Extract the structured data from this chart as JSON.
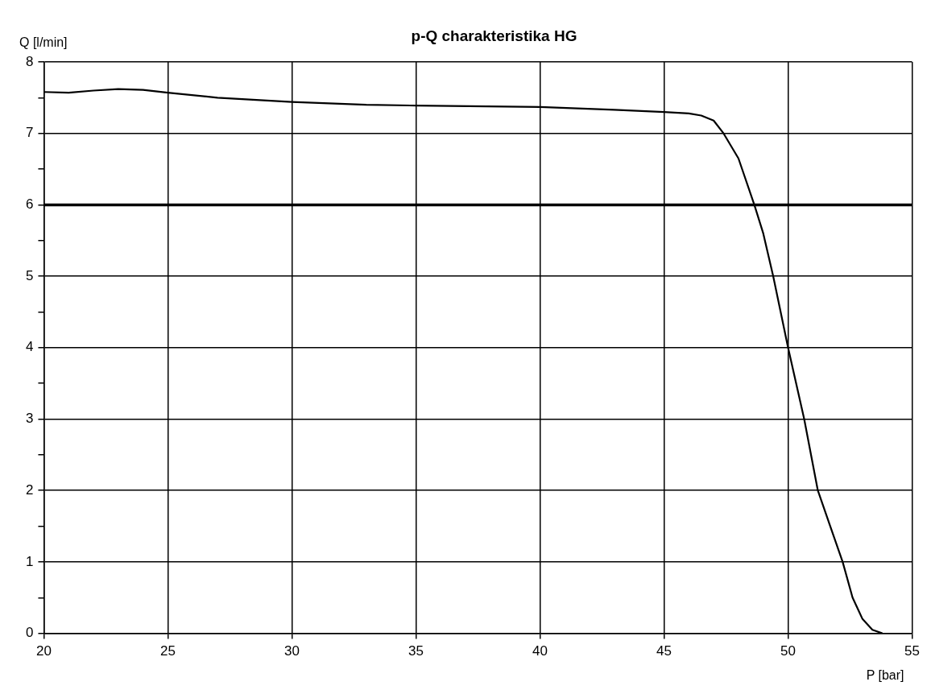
{
  "chart_data": {
    "type": "line",
    "title": "p-Q charakteristika HG",
    "xlabel": "P [bar]",
    "ylabel": "Q [l/min]",
    "x": [
      20,
      21,
      22,
      23,
      24,
      25,
      27,
      30,
      33,
      35,
      40,
      43,
      45,
      46,
      46.5,
      47,
      47.4,
      48,
      48.64,
      49,
      49.4,
      50,
      50.65,
      51.2,
      51.7,
      52.2,
      52.6,
      53,
      53.4,
      53.8
    ],
    "series": [
      {
        "color": "#000000",
        "values": [
          7.58,
          7.57,
          7.6,
          7.62,
          7.61,
          7.57,
          7.5,
          7.44,
          7.4,
          7.39,
          7.37,
          7.33,
          7.3,
          7.28,
          7.25,
          7.18,
          7.0,
          6.65,
          6.0,
          5.6,
          5.0,
          4.0,
          3.0,
          2.0,
          1.5,
          1.0,
          0.5,
          0.2,
          0.05,
          0.0
        ]
      }
    ],
    "xlim": [
      20,
      55
    ],
    "xticks": [
      20,
      25,
      30,
      35,
      40,
      45,
      50,
      55
    ],
    "ylim": [
      0,
      8
    ],
    "yticks": [
      0,
      {
        "value": 0.5,
        "label": null
      },
      1,
      {
        "value": 1.5,
        "label": null
      },
      2,
      {
        "value": 2.5,
        "label": null
      },
      3,
      {
        "value": 3.5,
        "label": null
      },
      4,
      {
        "value": 4.5,
        "label": null
      },
      5,
      {
        "value": 5.5,
        "label": null
      },
      6,
      {
        "value": 6.5,
        "label": null
      },
      7,
      {
        "value": 7.5,
        "label": null
      },
      8
    ],
    "ref_lines": [
      {
        "axis": "y",
        "value": 6,
        "color": "#000000"
      }
    ],
    "grid": true,
    "legend": false,
    "marker": "none",
    "line_style": "solid"
  }
}
